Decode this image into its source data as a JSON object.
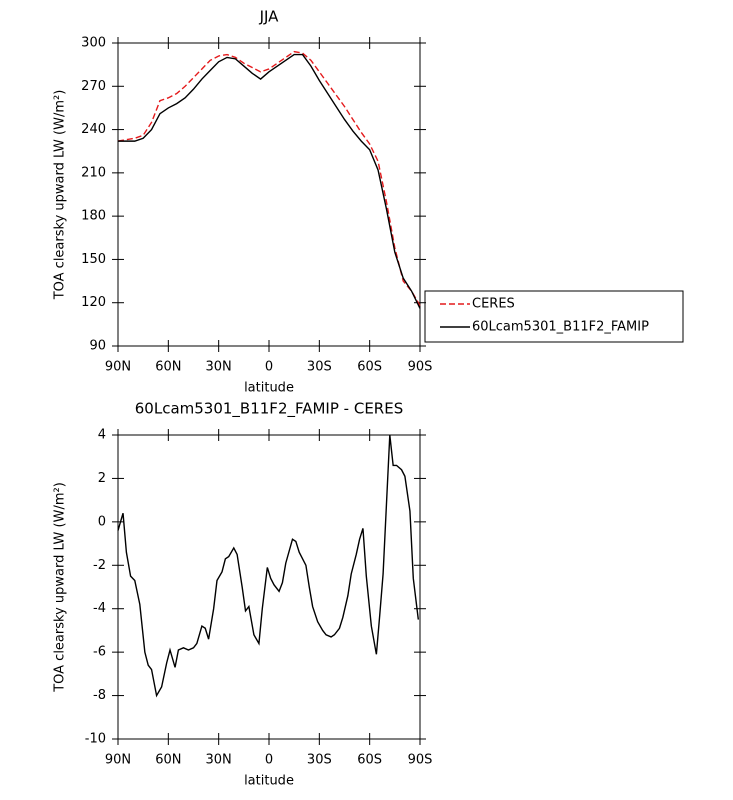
{
  "chart_data": [
    {
      "type": "line",
      "title": "JJA",
      "xlabel": "latitude",
      "ylabel": "TOA clearsky upward LW (W/m²)",
      "xlim": [
        90,
        -90
      ],
      "xticks": [
        {
          "value": 90,
          "label": "90N"
        },
        {
          "value": 60,
          "label": "60N"
        },
        {
          "value": 30,
          "label": "30N"
        },
        0,
        {
          "value": -30,
          "label": "30S"
        },
        {
          "value": -60,
          "label": "60S"
        },
        {
          "value": -90,
          "label": "90S"
        }
      ],
      "ylim": [
        90,
        300
      ],
      "yticks": [
        90,
        120,
        150,
        180,
        210,
        240,
        270,
        300
      ],
      "legend": "right",
      "x": [
        90,
        85,
        80,
        75,
        70,
        65,
        60,
        55,
        50,
        45,
        40,
        35,
        30,
        25,
        20,
        15,
        10,
        5,
        0,
        -5,
        -10,
        -15,
        -20,
        -25,
        -30,
        -35,
        -40,
        -45,
        -50,
        -55,
        -60,
        -65,
        -70,
        -75,
        -80,
        -85,
        -90
      ],
      "series": [
        {
          "name": "CERES",
          "color": "#e41a1c",
          "linestyle": "dashed",
          "values": [
            232,
            233,
            234,
            236,
            245,
            260,
            262,
            265,
            270,
            276,
            282,
            288,
            291,
            292,
            290,
            286,
            283,
            280,
            282,
            286,
            290,
            294,
            293,
            288,
            280,
            272,
            264,
            256,
            247,
            238,
            230,
            218,
            190,
            158,
            135,
            128,
            118
          ]
        },
        {
          "name": "60Lcam5301_B11F2_FAMIP",
          "color": "#000000",
          "linestyle": "solid",
          "values": [
            232,
            232,
            232,
            234,
            240,
            251,
            255,
            258,
            262,
            268,
            275,
            281,
            287,
            290,
            289,
            284,
            279,
            275,
            280,
            284,
            288,
            292,
            292,
            284,
            274,
            265,
            256,
            247,
            239,
            232,
            226,
            212,
            185,
            155,
            137,
            128,
            116
          ]
        }
      ]
    },
    {
      "type": "line",
      "title": "60Lcam5301_B11F2_FAMIP - CERES",
      "xlabel": "latitude",
      "ylabel": "TOA clearsky upward LW (W/m²)",
      "xlim": [
        90,
        -90
      ],
      "xticks": [
        {
          "value": 90,
          "label": "90N"
        },
        {
          "value": 60,
          "label": "60N"
        },
        {
          "value": 30,
          "label": "30N"
        },
        0,
        {
          "value": -30,
          "label": "30S"
        },
        {
          "value": -60,
          "label": "60S"
        },
        {
          "value": -90,
          "label": "90S"
        }
      ],
      "ylim": [
        -10,
        4
      ],
      "yticks": [
        -10,
        -8,
        -6,
        -4,
        -2,
        0,
        2,
        4
      ],
      "x": [
        90,
        87,
        85,
        82.5,
        80,
        77,
        74,
        72,
        70,
        67,
        64,
        61,
        59,
        56,
        54,
        51,
        48,
        45,
        43,
        40,
        38,
        36,
        33,
        31,
        28,
        26,
        24,
        21,
        19,
        16,
        14,
        12,
        9,
        6,
        4,
        1,
        -1,
        -3,
        -6,
        -8,
        -10,
        -14,
        -16,
        -18,
        -22,
        -24,
        -26,
        -29,
        -32,
        -34,
        -37,
        -39,
        -42,
        -44,
        -47,
        -49,
        -52,
        -54,
        -56,
        -58,
        -61,
        -64,
        -66,
        -68,
        -72,
        -74,
        -76,
        -79,
        -81,
        -84,
        -86,
        -89
      ],
      "series": [
        {
          "color": "#000000",
          "linestyle": "solid",
          "values": [
            -0.4,
            0.4,
            -1.4,
            -2.5,
            -2.7,
            -3.8,
            -6.0,
            -6.6,
            -6.8,
            -8.0,
            -7.6,
            -6.5,
            -5.9,
            -6.7,
            -5.9,
            -5.8,
            -5.9,
            -5.8,
            -5.6,
            -4.8,
            -4.9,
            -5.4,
            -4.0,
            -2.7,
            -2.3,
            -1.7,
            -1.6,
            -1.2,
            -1.5,
            -3.0,
            -4.1,
            -3.9,
            -5.2,
            -5.6,
            -4.0,
            -2.1,
            -2.6,
            -2.9,
            -3.2,
            -2.8,
            -1.9,
            -0.8,
            -0.9,
            -1.4,
            -2.0,
            -3.0,
            -3.9,
            -4.6,
            -5.0,
            -5.2,
            -5.3,
            -5.2,
            -4.9,
            -4.4,
            -3.4,
            -2.4,
            -1.5,
            -0.8,
            -0.3,
            -2.5,
            -4.8,
            -6.1,
            -4.3,
            -2.4,
            4.0,
            2.6,
            2.6,
            2.4,
            2.1,
            0.5,
            -2.6,
            -4.5
          ]
        }
      ]
    }
  ]
}
